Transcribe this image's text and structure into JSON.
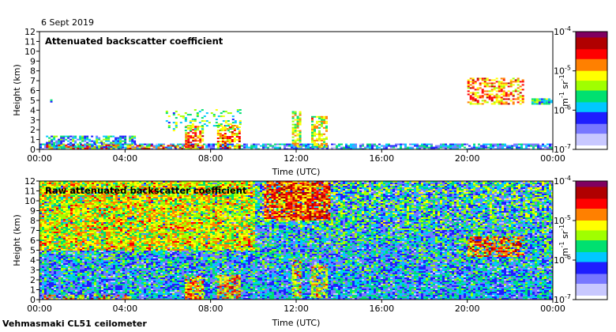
{
  "date_label": "6 Sept 2019",
  "footer_label": "Vehmasmaki CL51 ceilometer",
  "colors": {
    "frame": "#000000",
    "background": "#ffffff",
    "colorbar_stops": [
      "#ffffff",
      "#c8c8ff",
      "#7878ff",
      "#1e1eff",
      "#00c8ff",
      "#00e070",
      "#a0ff00",
      "#ffff00",
      "#ff8000",
      "#ff0000",
      "#b00000",
      "#800060"
    ]
  },
  "chart_data": [
    {
      "type": "heatmap",
      "title": "Attenuated backscatter coefficient",
      "xlabel": "Time (UTC)",
      "ylabel": "Height (km)",
      "x_ticks": [
        "00:00",
        "04:00",
        "08:00",
        "12:00",
        "16:00",
        "20:00",
        "00:00"
      ],
      "x_range_hours": [
        0,
        24
      ],
      "y_ticks": [
        0,
        1,
        2,
        3,
        4,
        5,
        6,
        7,
        8,
        9,
        10,
        11,
        12
      ],
      "y_range_km": [
        0,
        12
      ],
      "colorbar": {
        "label_base": "m",
        "label_exp1": "-1",
        "label_mid": " sr",
        "label_exp2": "-1",
        "ticks": [
          {
            "mant": "10",
            "exp": "-4"
          },
          {
            "mant": "10",
            "exp": "-5"
          },
          {
            "mant": "10",
            "exp": "-6"
          },
          {
            "mant": "10",
            "exp": "-7"
          }
        ]
      },
      "features": [
        {
          "desc": "boundary layer",
          "t0": 0,
          "t1": 24,
          "h0": 0,
          "h1": 0.6,
          "level": 0.3,
          "density": 0.75
        },
        {
          "desc": "morning layer",
          "t0": 0.3,
          "t1": 4.5,
          "h0": 0.2,
          "h1": 1.4,
          "level": 0.38,
          "density": 0.7
        },
        {
          "desc": "low cloud base",
          "t0": 0.2,
          "t1": 4.4,
          "h0": 0.15,
          "h1": 0.5,
          "level": 0.72,
          "density": 0.4
        },
        {
          "desc": "isolated return",
          "t0": 0.5,
          "t1": 0.6,
          "h0": 4.8,
          "h1": 5.1,
          "level": 0.45,
          "density": 0.9
        },
        {
          "desc": "cloud",
          "t0": 4.3,
          "t1": 6.8,
          "h0": 0.1,
          "h1": 0.45,
          "level": 0.75,
          "density": 0.5
        },
        {
          "desc": "cloud",
          "t0": 6.8,
          "t1": 7.6,
          "h0": 0.1,
          "h1": 2.4,
          "level": 0.7,
          "density": 0.75
        },
        {
          "desc": "cloud",
          "t0": 8.3,
          "t1": 9.3,
          "h0": 0.1,
          "h1": 2.5,
          "level": 0.72,
          "density": 0.75
        },
        {
          "desc": "mid cloud",
          "t0": 5.9,
          "t1": 9.4,
          "h0": 2.0,
          "h1": 4.1,
          "level": 0.48,
          "density": 0.25
        },
        {
          "desc": "cloud",
          "t0": 11.8,
          "t1": 12.2,
          "h0": 0.2,
          "h1": 3.9,
          "level": 0.58,
          "density": 0.7
        },
        {
          "desc": "cloud",
          "t0": 12.7,
          "t1": 13.4,
          "h0": 0.2,
          "h1": 3.4,
          "level": 0.6,
          "density": 0.65
        },
        {
          "desc": "cloud layer",
          "t0": 20.0,
          "t1": 22.6,
          "h0": 4.6,
          "h1": 7.3,
          "level": 0.72,
          "density": 0.55
        },
        {
          "desc": "cloud layer",
          "t0": 23.0,
          "t1": 24.0,
          "h0": 4.7,
          "h1": 5.2,
          "level": 0.45,
          "density": 0.9
        }
      ]
    },
    {
      "type": "heatmap",
      "title": "Raw attenuated backscatter coefficient",
      "xlabel": "Time (UTC)",
      "ylabel": "Height (km)",
      "x_ticks": [
        "00:00",
        "04:00",
        "08:00",
        "12:00",
        "16:00",
        "20:00",
        "00:00"
      ],
      "x_range_hours": [
        0,
        24
      ],
      "y_ticks": [
        0,
        1,
        2,
        3,
        4,
        5,
        6,
        7,
        8,
        9,
        10,
        11,
        12
      ],
      "y_range_km": [
        0,
        12
      ],
      "colorbar": {
        "label_base": "m",
        "label_exp1": "-1",
        "label_mid": " sr",
        "label_exp2": "-1",
        "ticks": [
          {
            "mant": "10",
            "exp": "-4"
          },
          {
            "mant": "10",
            "exp": "-5"
          },
          {
            "mant": "10",
            "exp": "-6"
          },
          {
            "mant": "10",
            "exp": "-7"
          }
        ]
      },
      "features": [
        {
          "desc": "noise field",
          "t0": 0,
          "t1": 24,
          "h0": 0,
          "h1": 12,
          "level": 0.5,
          "density": 1.0
        },
        {
          "desc": "noisy morning",
          "t0": 0,
          "t1": 10,
          "h0": 5,
          "h1": 12,
          "level": 0.62,
          "density": 0.9
        },
        {
          "desc": "noisy midday",
          "t0": 10.5,
          "t1": 13.5,
          "h0": 8,
          "h1": 12,
          "level": 0.78,
          "density": 0.85
        },
        {
          "desc": "cloud",
          "t0": 6.8,
          "t1": 7.6,
          "h0": 0.1,
          "h1": 2.4,
          "level": 0.7,
          "density": 0.75
        },
        {
          "desc": "cloud",
          "t0": 8.3,
          "t1": 9.3,
          "h0": 0.1,
          "h1": 2.5,
          "level": 0.72,
          "density": 0.75
        },
        {
          "desc": "cloud",
          "t0": 11.8,
          "t1": 12.2,
          "h0": 0.2,
          "h1": 4.0,
          "level": 0.62,
          "density": 0.7
        },
        {
          "desc": "cloud",
          "t0": 12.7,
          "t1": 13.4,
          "h0": 0.2,
          "h1": 3.5,
          "level": 0.62,
          "density": 0.65
        },
        {
          "desc": "cloud layer",
          "t0": 20.0,
          "t1": 22.6,
          "h0": 4.4,
          "h1": 6.4,
          "level": 0.76,
          "density": 0.65
        },
        {
          "desc": "low cloud base",
          "t0": 0.2,
          "t1": 4.4,
          "h0": 0.15,
          "h1": 0.5,
          "level": 0.72,
          "density": 0.45
        }
      ]
    }
  ]
}
